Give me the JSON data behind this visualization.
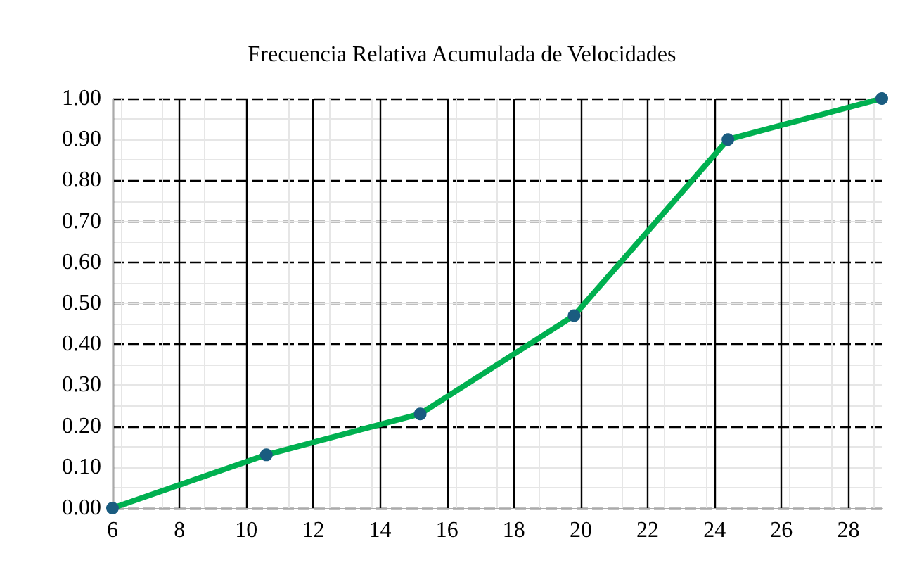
{
  "chart_data": {
    "type": "line",
    "title": "Frecuencia Relativa Acumulada de Velocidades",
    "x": [
      6,
      10.6,
      15.2,
      19.8,
      24.4,
      29
    ],
    "series": [
      {
        "color": "#00b050",
        "values": [
          0,
          0.13,
          0.23,
          0.47,
          0.9,
          1.0
        ]
      }
    ],
    "xlim": [
      6,
      29
    ],
    "xticks": [
      6,
      8,
      10,
      12,
      14,
      16,
      18,
      20,
      22,
      24,
      26,
      28
    ],
    "ylim": [
      0,
      1
    ],
    "yticks": [
      {
        "value": 0,
        "label": "0.00"
      },
      {
        "value": 0.1,
        "label": "0.10"
      },
      {
        "value": 0.2,
        "label": "0.20"
      },
      {
        "value": 0.3,
        "label": "0.30"
      },
      {
        "value": 0.4,
        "label": "0.40"
      },
      {
        "value": 0.5,
        "label": "0.50"
      },
      {
        "value": 0.6,
        "label": "0.60"
      },
      {
        "value": 0.7,
        "label": "0.70"
      },
      {
        "value": 0.8,
        "label": "0.80"
      },
      {
        "value": 0.9,
        "label": "0.90"
      },
      {
        "value": 1.0,
        "label": "1.00"
      }
    ],
    "grid": true,
    "marker": "circle",
    "line_style": "solid"
  }
}
